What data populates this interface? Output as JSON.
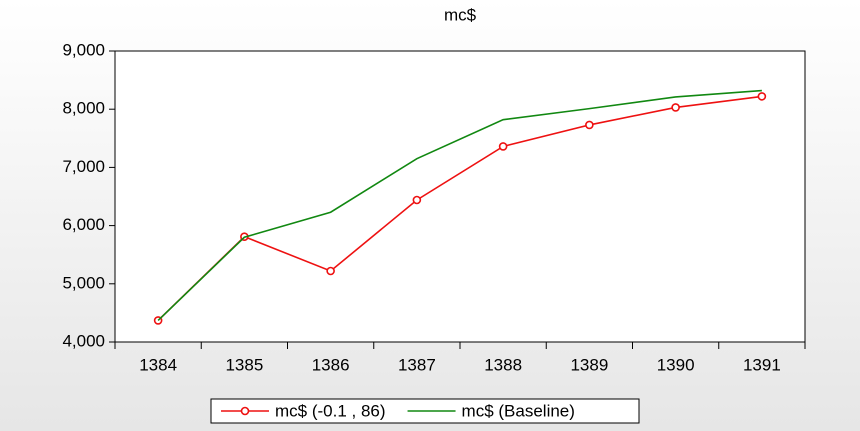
{
  "chart_data": {
    "type": "line",
    "title": "mc$",
    "categories": [
      "1384",
      "1385",
      "1386",
      "1387",
      "1388",
      "1389",
      "1390",
      "1391"
    ],
    "series": [
      {
        "name": "mc$ (-0.1 , 86)",
        "color": "#ee1111",
        "marker": "circle",
        "values": [
          4370,
          5810,
          5220,
          6440,
          7360,
          7730,
          8030,
          8220
        ]
      },
      {
        "name": "mc$ (Baseline)",
        "color": "#118811",
        "values": [
          4370,
          5800,
          6230,
          7150,
          7820,
          8010,
          8210,
          8320
        ]
      }
    ],
    "ylim": [
      4000,
      9000
    ],
    "yticks": [
      {
        "value": 4000,
        "label": "4,000"
      },
      {
        "value": 5000,
        "label": "5,000"
      },
      {
        "value": 6000,
        "label": "6,000"
      },
      {
        "value": 7000,
        "label": "7,000"
      },
      {
        "value": 8000,
        "label": "8,000"
      },
      {
        "value": 9000,
        "label": "9,000"
      }
    ],
    "legend": "bottom"
  }
}
